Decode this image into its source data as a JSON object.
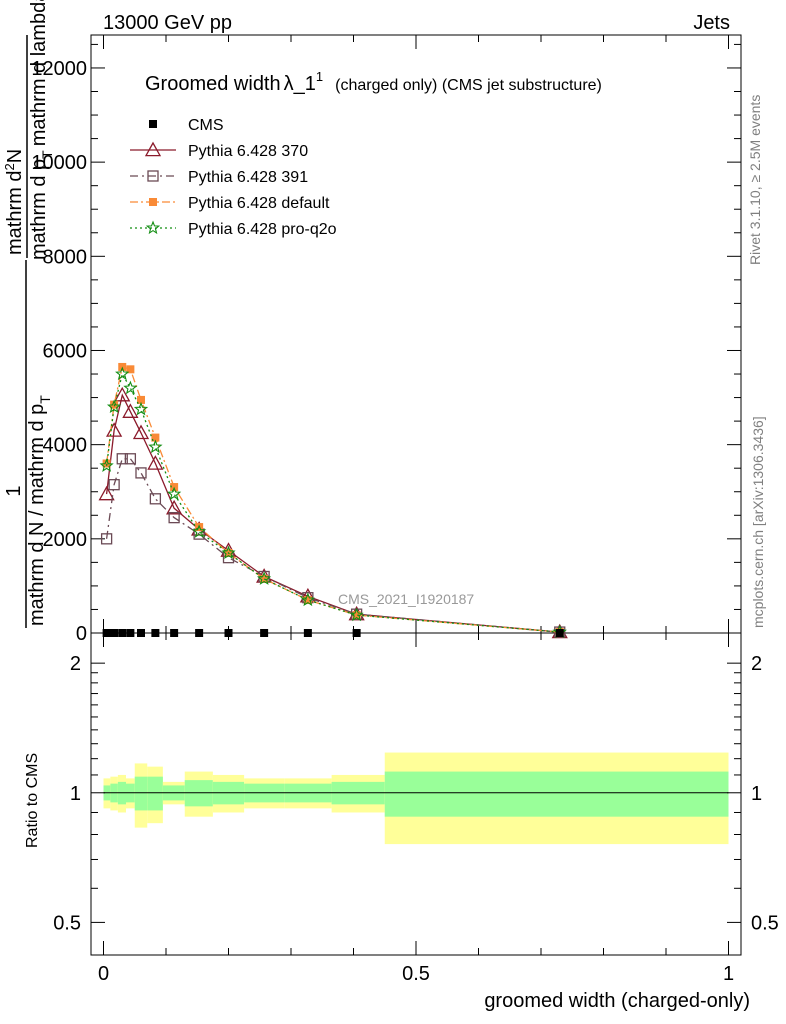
{
  "header": {
    "left": "13000 GeV pp",
    "right": "Jets"
  },
  "side": {
    "rivet": "Rivet 3.1.10, ≥ 2.5M events",
    "mcplots": "mcplots.cern.ch [arXiv:1306.3436]"
  },
  "chart_data": {
    "type": "line",
    "title_main": "Groomed width",
    "title_lambda": "λ_1",
    "title_sup": "1",
    "title_rest": "(charged only) (CMS jet substructure)",
    "watermark": "CMS_2021_I1920187",
    "xlabel": "groomed width (charged-only)",
    "ylabel_top_num": "1",
    "ylabel_top_den": "mathrm d N / mathrm d p",
    "ylabel_top_den_sub": "T",
    "ylabel_frac_num": "mathrm d",
    "ylabel_frac_sup": "2",
    "ylabel_frac_N": "N",
    "ylabel_frac_den": "mathrm d p",
    "ylabel_frac_den_sub": "T",
    "ylabel_frac_den_rest": "mathrm d lambda",
    "ratio_ylabel": "Ratio to CMS",
    "xlim": [
      -0.02,
      1.02
    ],
    "ylim": [
      0,
      12700
    ],
    "x_ticks": [
      "0",
      "0.5",
      "1"
    ],
    "x_tick_values": [
      0,
      0.5,
      1
    ],
    "y_ticks": [
      "0",
      "2000",
      "4000",
      "6000",
      "8000",
      "10000",
      "12000"
    ],
    "y_tick_values": [
      0,
      2000,
      4000,
      6000,
      8000,
      10000,
      12000
    ],
    "ratio_ylim": [
      0.42,
      2.35
    ],
    "ratio_ticks": [
      "0.5",
      "1",
      "2"
    ],
    "ratio_tick_values": [
      0.5,
      1,
      2
    ],
    "x": [
      0.005,
      0.017,
      0.03,
      0.043,
      0.06,
      0.083,
      0.113,
      0.153,
      0.2,
      0.257,
      0.327,
      0.405,
      0.73
    ],
    "cms": {
      "name": "CMS",
      "values": [
        0,
        0,
        0,
        0,
        0,
        0,
        0,
        0,
        0,
        0,
        0,
        0,
        0
      ]
    },
    "series": [
      {
        "name": "Pythia 6.428 370",
        "color": "#8b1a2b",
        "marker": "triangle-open",
        "dash": "",
        "values": [
          2950,
          4300,
          5050,
          4700,
          4250,
          3600,
          2650,
          2200,
          1750,
          1200,
          780,
          400,
          20
        ]
      },
      {
        "name": "Pythia 6.428 391",
        "color": "#6b4a55",
        "marker": "square-open",
        "dash": "8,4,2,4",
        "values": [
          2000,
          3150,
          3700,
          3700,
          3400,
          2850,
          2450,
          2100,
          1600,
          1200,
          750,
          400,
          20
        ]
      },
      {
        "name": "Pythia 6.428 default",
        "color": "#f98a36",
        "marker": "square-filled",
        "dash": "8,3,2,3",
        "values": [
          3600,
          4850,
          5650,
          5600,
          4950,
          4150,
          3100,
          2250,
          1700,
          1150,
          700,
          380,
          20
        ]
      },
      {
        "name": "Pythia 6.428 pro-q2o",
        "color": "#128d12",
        "marker": "star",
        "dash": "2,3",
        "values": [
          3550,
          4800,
          5500,
          5200,
          4750,
          3950,
          2950,
          2150,
          1700,
          1150,
          700,
          380,
          20
        ]
      }
    ],
    "ratio_bins": [
      0,
      0.011,
      0.023,
      0.036,
      0.05,
      0.07,
      0.095,
      0.13,
      0.175,
      0.225,
      0.29,
      0.365,
      0.45,
      1.0
    ],
    "ratio_inner": [
      0.04,
      0.05,
      0.06,
      0.05,
      0.09,
      0.09,
      0.04,
      0.07,
      0.06,
      0.05,
      0.05,
      0.06,
      0.12
    ],
    "ratio_outer": [
      0.08,
      0.09,
      0.1,
      0.08,
      0.17,
      0.15,
      0.06,
      0.12,
      0.1,
      0.08,
      0.08,
      0.1,
      0.24
    ],
    "ratio_inner_color": "#99ff99",
    "ratio_outer_color": "#ffff99"
  }
}
